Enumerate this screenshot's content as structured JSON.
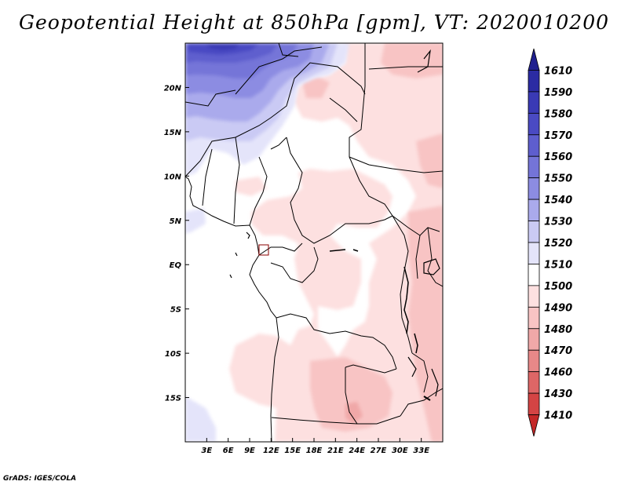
{
  "title": "Geopotential Height at 850hPa [gpm], VT: 2020010200",
  "credit": "GrADS: IGES/COLA",
  "map": {
    "lon_range": [
      0,
      36
    ],
    "lat_range": [
      -20,
      25
    ],
    "lat_labels": [
      {
        "lat": 20,
        "label": "20N"
      },
      {
        "lat": 15,
        "label": "15N"
      },
      {
        "lat": 10,
        "label": "10N"
      },
      {
        "lat": 5,
        "label": "5N"
      },
      {
        "lat": 0,
        "label": "EQ"
      },
      {
        "lat": -5,
        "label": "5S"
      },
      {
        "lat": -10,
        "label": "10S"
      },
      {
        "lat": -15,
        "label": "15S"
      }
    ],
    "lon_labels": [
      {
        "lon": 3,
        "label": "3E"
      },
      {
        "lon": 6,
        "label": "6E"
      },
      {
        "lon": 9,
        "label": "9E"
      },
      {
        "lon": 12,
        "label": "12E"
      },
      {
        "lon": 15,
        "label": "15E"
      },
      {
        "lon": 18,
        "label": "18E"
      },
      {
        "lon": 21,
        "label": "21E"
      },
      {
        "lon": 24,
        "label": "24E"
      },
      {
        "lon": 27,
        "label": "27E"
      },
      {
        "lon": 30,
        "label": "30E"
      },
      {
        "lon": 33,
        "label": "33E"
      }
    ]
  },
  "colorbar": {
    "labels": [
      "1610",
      "1590",
      "1580",
      "1570",
      "1560",
      "1550",
      "1540",
      "1530",
      "1520",
      "1510",
      "1500",
      "1490",
      "1480",
      "1470",
      "1460",
      "1430",
      "1410"
    ],
    "colors": [
      "#20208f",
      "#2b2ba3",
      "#3a3ab5",
      "#4a4ac3",
      "#5e5ece",
      "#7474d8",
      "#8c8ce2",
      "#aaaaec",
      "#cacaf4",
      "#e4e4fa",
      "#ffffff",
      "#fde0e0",
      "#f8c4c4",
      "#f0a8a8",
      "#e88888",
      "#de6666",
      "#d44444",
      "#c42828"
    ]
  }
}
